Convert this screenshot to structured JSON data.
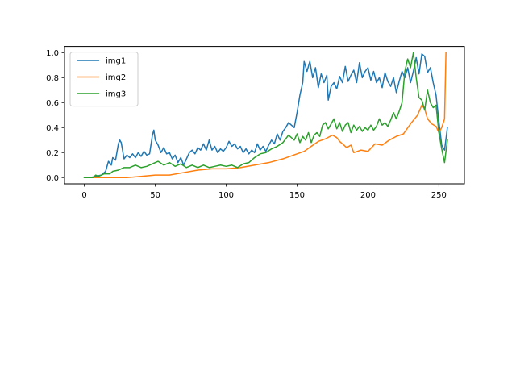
{
  "chart_data": {
    "type": "line",
    "title": "",
    "xlabel": "",
    "ylabel": "",
    "xlim": [
      -14,
      268
    ],
    "ylim": [
      -0.05,
      1.05
    ],
    "xticks": [
      0,
      50,
      100,
      150,
      200,
      250
    ],
    "yticks": [
      0.0,
      0.2,
      0.4,
      0.6,
      0.8,
      1.0
    ],
    "xtick_labels": [
      "0",
      "50",
      "100",
      "150",
      "200",
      "250"
    ],
    "ytick_labels": [
      "0.0",
      "0.2",
      "0.4",
      "0.6",
      "0.8",
      "1.0"
    ],
    "grid": false,
    "legend_position": "top-left",
    "series": [
      {
        "name": "img1",
        "color": "#1f77b4",
        "points": [
          [
            0,
            0
          ],
          [
            4,
            0.0
          ],
          [
            8,
            0.01
          ],
          [
            12,
            0.02
          ],
          [
            15,
            0.05
          ],
          [
            17,
            0.13
          ],
          [
            19,
            0.1
          ],
          [
            20,
            0.16
          ],
          [
            22,
            0.14
          ],
          [
            24,
            0.27
          ],
          [
            25,
            0.3
          ],
          [
            26,
            0.28
          ],
          [
            28,
            0.15
          ],
          [
            30,
            0.18
          ],
          [
            32,
            0.16
          ],
          [
            34,
            0.19
          ],
          [
            36,
            0.16
          ],
          [
            38,
            0.2
          ],
          [
            40,
            0.17
          ],
          [
            42,
            0.21
          ],
          [
            44,
            0.18
          ],
          [
            46,
            0.19
          ],
          [
            48,
            0.34
          ],
          [
            49,
            0.38
          ],
          [
            50,
            0.3
          ],
          [
            52,
            0.26
          ],
          [
            54,
            0.2
          ],
          [
            56,
            0.24
          ],
          [
            58,
            0.19
          ],
          [
            60,
            0.2
          ],
          [
            62,
            0.15
          ],
          [
            64,
            0.18
          ],
          [
            66,
            0.12
          ],
          [
            68,
            0.16
          ],
          [
            70,
            0.1
          ],
          [
            72,
            0.15
          ],
          [
            74,
            0.2
          ],
          [
            76,
            0.22
          ],
          [
            78,
            0.19
          ],
          [
            80,
            0.24
          ],
          [
            82,
            0.22
          ],
          [
            84,
            0.27
          ],
          [
            86,
            0.22
          ],
          [
            88,
            0.3
          ],
          [
            90,
            0.22
          ],
          [
            92,
            0.25
          ],
          [
            94,
            0.2
          ],
          [
            96,
            0.23
          ],
          [
            98,
            0.21
          ],
          [
            100,
            0.24
          ],
          [
            102,
            0.29
          ],
          [
            104,
            0.25
          ],
          [
            106,
            0.27
          ],
          [
            108,
            0.23
          ],
          [
            110,
            0.25
          ],
          [
            112,
            0.2
          ],
          [
            114,
            0.23
          ],
          [
            116,
            0.19
          ],
          [
            118,
            0.22
          ],
          [
            120,
            0.2
          ],
          [
            122,
            0.27
          ],
          [
            124,
            0.22
          ],
          [
            126,
            0.25
          ],
          [
            128,
            0.21
          ],
          [
            130,
            0.26
          ],
          [
            132,
            0.3
          ],
          [
            134,
            0.27
          ],
          [
            136,
            0.35
          ],
          [
            138,
            0.3
          ],
          [
            140,
            0.37
          ],
          [
            142,
            0.4
          ],
          [
            144,
            0.44
          ],
          [
            146,
            0.42
          ],
          [
            148,
            0.4
          ],
          [
            150,
            0.52
          ],
          [
            152,
            0.66
          ],
          [
            154,
            0.76
          ],
          [
            155,
            0.93
          ],
          [
            157,
            0.85
          ],
          [
            159,
            0.93
          ],
          [
            161,
            0.8
          ],
          [
            163,
            0.88
          ],
          [
            165,
            0.72
          ],
          [
            167,
            0.83
          ],
          [
            169,
            0.76
          ],
          [
            171,
            0.82
          ],
          [
            172,
            0.62
          ],
          [
            174,
            0.73
          ],
          [
            176,
            0.76
          ],
          [
            178,
            0.71
          ],
          [
            180,
            0.81
          ],
          [
            182,
            0.76
          ],
          [
            184,
            0.89
          ],
          [
            186,
            0.77
          ],
          [
            188,
            0.82
          ],
          [
            190,
            0.86
          ],
          [
            192,
            0.76
          ],
          [
            194,
            0.92
          ],
          [
            196,
            0.8
          ],
          [
            198,
            0.85
          ],
          [
            200,
            0.88
          ],
          [
            202,
            0.78
          ],
          [
            204,
            0.85
          ],
          [
            206,
            0.76
          ],
          [
            208,
            0.8
          ],
          [
            210,
            0.72
          ],
          [
            212,
            0.84
          ],
          [
            214,
            0.77
          ],
          [
            216,
            0.73
          ],
          [
            218,
            0.8
          ],
          [
            220,
            0.68
          ],
          [
            222,
            0.77
          ],
          [
            224,
            0.85
          ],
          [
            226,
            0.8
          ],
          [
            228,
            0.88
          ],
          [
            230,
            0.76
          ],
          [
            232,
            0.85
          ],
          [
            234,
            0.96
          ],
          [
            236,
            0.83
          ],
          [
            238,
            0.99
          ],
          [
            240,
            0.97
          ],
          [
            242,
            0.84
          ],
          [
            244,
            0.88
          ],
          [
            246,
            0.76
          ],
          [
            248,
            0.66
          ],
          [
            250,
            0.45
          ],
          [
            252,
            0.26
          ],
          [
            254,
            0.22
          ],
          [
            256,
            0.4
          ]
        ]
      },
      {
        "name": "img2",
        "color": "#ff7f0e",
        "points": [
          [
            0,
            0
          ],
          [
            10,
            0.0
          ],
          [
            20,
            0.0
          ],
          [
            30,
            0.0
          ],
          [
            40,
            0.01
          ],
          [
            50,
            0.02
          ],
          [
            60,
            0.02
          ],
          [
            70,
            0.04
          ],
          [
            80,
            0.06
          ],
          [
            90,
            0.07
          ],
          [
            100,
            0.07
          ],
          [
            110,
            0.08
          ],
          [
            120,
            0.1
          ],
          [
            130,
            0.12
          ],
          [
            140,
            0.15
          ],
          [
            150,
            0.19
          ],
          [
            155,
            0.21
          ],
          [
            160,
            0.25
          ],
          [
            165,
            0.29
          ],
          [
            170,
            0.31
          ],
          [
            175,
            0.34
          ],
          [
            178,
            0.32
          ],
          [
            180,
            0.29
          ],
          [
            185,
            0.24
          ],
          [
            188,
            0.26
          ],
          [
            190,
            0.2
          ],
          [
            195,
            0.22
          ],
          [
            200,
            0.21
          ],
          [
            205,
            0.27
          ],
          [
            210,
            0.26
          ],
          [
            215,
            0.3
          ],
          [
            220,
            0.33
          ],
          [
            225,
            0.35
          ],
          [
            230,
            0.43
          ],
          [
            235,
            0.5
          ],
          [
            238,
            0.58
          ],
          [
            240,
            0.55
          ],
          [
            242,
            0.47
          ],
          [
            245,
            0.43
          ],
          [
            248,
            0.41
          ],
          [
            250,
            0.36
          ],
          [
            252,
            0.4
          ],
          [
            254,
            0.47
          ],
          [
            255,
            1.0
          ]
        ]
      },
      {
        "name": "img3",
        "color": "#2ca02c",
        "points": [
          [
            0,
            0
          ],
          [
            6,
            0.0
          ],
          [
            8,
            0.02
          ],
          [
            10,
            0.01
          ],
          [
            14,
            0.03
          ],
          [
            18,
            0.03
          ],
          [
            20,
            0.05
          ],
          [
            24,
            0.06
          ],
          [
            28,
            0.08
          ],
          [
            32,
            0.08
          ],
          [
            36,
            0.1
          ],
          [
            40,
            0.08
          ],
          [
            44,
            0.09
          ],
          [
            48,
            0.11
          ],
          [
            52,
            0.13
          ],
          [
            56,
            0.1
          ],
          [
            60,
            0.12
          ],
          [
            64,
            0.09
          ],
          [
            68,
            0.11
          ],
          [
            72,
            0.08
          ],
          [
            76,
            0.1
          ],
          [
            80,
            0.08
          ],
          [
            84,
            0.1
          ],
          [
            88,
            0.08
          ],
          [
            92,
            0.09
          ],
          [
            96,
            0.1
          ],
          [
            100,
            0.09
          ],
          [
            104,
            0.1
          ],
          [
            108,
            0.08
          ],
          [
            112,
            0.11
          ],
          [
            116,
            0.12
          ],
          [
            120,
            0.16
          ],
          [
            124,
            0.19
          ],
          [
            128,
            0.2
          ],
          [
            132,
            0.23
          ],
          [
            136,
            0.25
          ],
          [
            140,
            0.28
          ],
          [
            144,
            0.34
          ],
          [
            148,
            0.3
          ],
          [
            150,
            0.35
          ],
          [
            152,
            0.28
          ],
          [
            154,
            0.33
          ],
          [
            156,
            0.3
          ],
          [
            158,
            0.36
          ],
          [
            160,
            0.28
          ],
          [
            162,
            0.34
          ],
          [
            164,
            0.36
          ],
          [
            166,
            0.33
          ],
          [
            168,
            0.42
          ],
          [
            170,
            0.44
          ],
          [
            172,
            0.39
          ],
          [
            174,
            0.43
          ],
          [
            176,
            0.47
          ],
          [
            178,
            0.39
          ],
          [
            180,
            0.44
          ],
          [
            182,
            0.37
          ],
          [
            184,
            0.42
          ],
          [
            186,
            0.44
          ],
          [
            188,
            0.36
          ],
          [
            190,
            0.42
          ],
          [
            192,
            0.38
          ],
          [
            194,
            0.41
          ],
          [
            196,
            0.37
          ],
          [
            198,
            0.4
          ],
          [
            200,
            0.38
          ],
          [
            202,
            0.42
          ],
          [
            204,
            0.38
          ],
          [
            206,
            0.41
          ],
          [
            208,
            0.47
          ],
          [
            210,
            0.42
          ],
          [
            212,
            0.44
          ],
          [
            214,
            0.41
          ],
          [
            216,
            0.46
          ],
          [
            218,
            0.52
          ],
          [
            220,
            0.47
          ],
          [
            222,
            0.53
          ],
          [
            224,
            0.6
          ],
          [
            226,
            0.85
          ],
          [
            228,
            0.95
          ],
          [
            230,
            0.88
          ],
          [
            232,
            1.0
          ],
          [
            234,
            0.8
          ],
          [
            236,
            0.64
          ],
          [
            238,
            0.62
          ],
          [
            240,
            0.54
          ],
          [
            242,
            0.7
          ],
          [
            244,
            0.6
          ],
          [
            246,
            0.56
          ],
          [
            248,
            0.58
          ],
          [
            250,
            0.36
          ],
          [
            252,
            0.23
          ],
          [
            254,
            0.12
          ],
          [
            256,
            0.3
          ]
        ]
      }
    ]
  }
}
